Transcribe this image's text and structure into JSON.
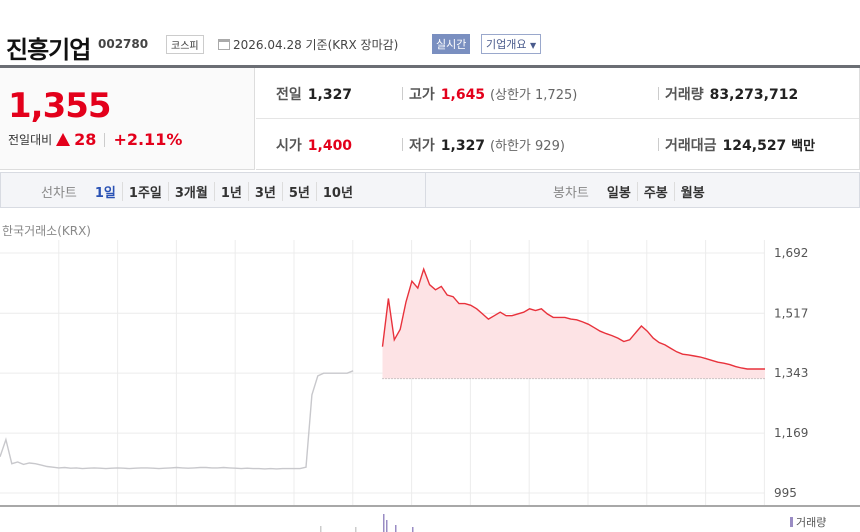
{
  "header": {
    "title": "진흥기업",
    "code": "002780",
    "market": "코스피",
    "date": "2026.04.28 기준(KRX 장마감)",
    "realtime_label": "실시간",
    "overview_label": "기업개요"
  },
  "quote": {
    "price": "1,355",
    "change_label": "전일대비",
    "change": "28",
    "change_pct": "+2.11%",
    "direction": "up"
  },
  "info": {
    "prev_close_label": "전일",
    "prev_close": "1,327",
    "high_label": "고가",
    "high": "1,645",
    "upper_limit": "(상한가 1,725)",
    "volume_label": "거래량",
    "volume": "83,273,712",
    "open_label": "시가",
    "open": "1,400",
    "low_label": "저가",
    "low": "1,327",
    "lower_limit": "(하한가 929)",
    "value_label": "거래대금",
    "value": "124,527",
    "value_unit": "백만"
  },
  "tabs": {
    "line_label": "선차트",
    "line": [
      "1일",
      "1주일",
      "3개월",
      "1년",
      "3년",
      "5년",
      "10년"
    ],
    "active": "1일",
    "candle_label": "봉차트",
    "candle": [
      "일봉",
      "주봉",
      "월봉"
    ]
  },
  "chart_source": "한국거래소(KRX)",
  "volume_legend": "거래량",
  "colors": {
    "up": "#e3001b",
    "accent": "#2a52b4",
    "line": "#e8323c",
    "fill": "#fde3e5",
    "prev": "#c8c8cc",
    "volume": "#9a8cc4"
  },
  "chart_data": {
    "type": "line",
    "ylim": [
      995,
      1692
    ],
    "yticks": [
      "1,692",
      "1,517",
      "1,343",
      "1,169",
      "995"
    ],
    "ytick_values": [
      1692,
      1517,
      1343,
      1169,
      995
    ],
    "baseline": 1327,
    "grid": true,
    "xlim": [
      0,
      130
    ],
    "series": [
      {
        "style": "gray",
        "x_start": 0,
        "values": [
          1100,
          1150,
          1080,
          1085,
          1078,
          1082,
          1080,
          1076,
          1072,
          1070,
          1068,
          1069,
          1067,
          1068,
          1066,
          1067,
          1068,
          1067,
          1066,
          1067,
          1068,
          1067,
          1066,
          1067,
          1068,
          1068,
          1067,
          1066,
          1067,
          1068,
          1069,
          1068,
          1067,
          1068,
          1069,
          1069,
          1068,
          1068,
          1069,
          1068,
          1067,
          1066,
          1067,
          1066,
          1066,
          1065,
          1066,
          1065,
          1066,
          1066,
          1066,
          1066,
          1070,
          1280,
          1335,
          1343,
          1343,
          1343,
          1343,
          1343,
          1350
        ]
      },
      {
        "style": "red",
        "x_start": 65,
        "values": [
          1420,
          1560,
          1440,
          1470,
          1550,
          1610,
          1590,
          1645,
          1600,
          1585,
          1595,
          1570,
          1565,
          1545,
          1545,
          1540,
          1530,
          1515,
          1500,
          1510,
          1520,
          1510,
          1510,
          1515,
          1520,
          1530,
          1525,
          1530,
          1515,
          1505,
          1505,
          1505,
          1500,
          1498,
          1492,
          1485,
          1475,
          1465,
          1458,
          1452,
          1445,
          1435,
          1440,
          1460,
          1480,
          1465,
          1445,
          1432,
          1425,
          1415,
          1405,
          1398,
          1396,
          1393,
          1390,
          1385,
          1380,
          1375,
          1372,
          1368,
          1362,
          1358,
          1355,
          1355,
          1355,
          1355
        ]
      }
    ]
  }
}
